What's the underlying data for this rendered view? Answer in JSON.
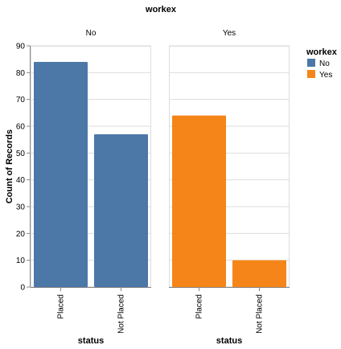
{
  "chart_data": {
    "type": "bar",
    "title": "workex",
    "facet_field": "workex",
    "facets": [
      {
        "label": "No",
        "color": "#4c78a8",
        "categories": [
          "Placed",
          "Not Placed"
        ],
        "values": [
          84,
          57
        ]
      },
      {
        "label": "Yes",
        "color": "#f58518",
        "categories": [
          "Placed",
          "Not Placed"
        ],
        "values": [
          64,
          10
        ]
      }
    ],
    "xlabel": "status",
    "ylabel": "Count of Records",
    "ylim": [
      0,
      90
    ],
    "yticks": [
      0,
      10,
      20,
      30,
      40,
      50,
      60,
      70,
      80,
      90
    ],
    "grid": true,
    "legend": {
      "title": "workex",
      "placement": "top-right",
      "entries": [
        {
          "label": "No",
          "color": "#4c78a8"
        },
        {
          "label": "Yes",
          "color": "#f58518"
        }
      ]
    }
  }
}
